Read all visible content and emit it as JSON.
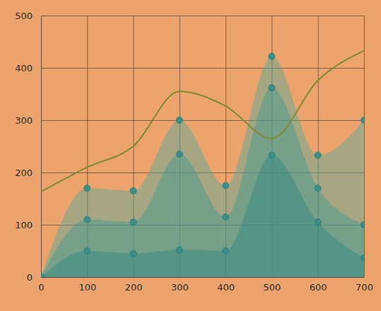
{
  "chart_data": {
    "type": "area",
    "x": [
      0,
      100,
      200,
      300,
      400,
      500,
      600,
      700
    ],
    "series": [
      {
        "type": "area",
        "color": "#4fa8a0",
        "marker": "circle",
        "values": [
          0,
          170,
          165,
          300,
          175,
          422,
          233,
          300
        ]
      },
      {
        "type": "area",
        "color": "#3e9891",
        "marker": "circle",
        "values": [
          0,
          110,
          105,
          235,
          115,
          362,
          170,
          100
        ]
      },
      {
        "type": "area",
        "color": "#2f8882",
        "marker": "circle",
        "values": [
          0,
          50,
          45,
          52,
          50,
          233,
          105,
          37
        ]
      },
      {
        "type": "line",
        "color": "#7f8a2c",
        "values": [
          163,
          210,
          250,
          355,
          327,
          265,
          376,
          433
        ]
      }
    ],
    "xlim": [
      0,
      700
    ],
    "xticks": [
      0,
      100,
      200,
      300,
      400,
      500,
      600,
      700
    ],
    "ylim": [
      0,
      500
    ],
    "yticks": [
      0,
      100,
      200,
      300,
      400,
      500
    ],
    "grid": true
  }
}
